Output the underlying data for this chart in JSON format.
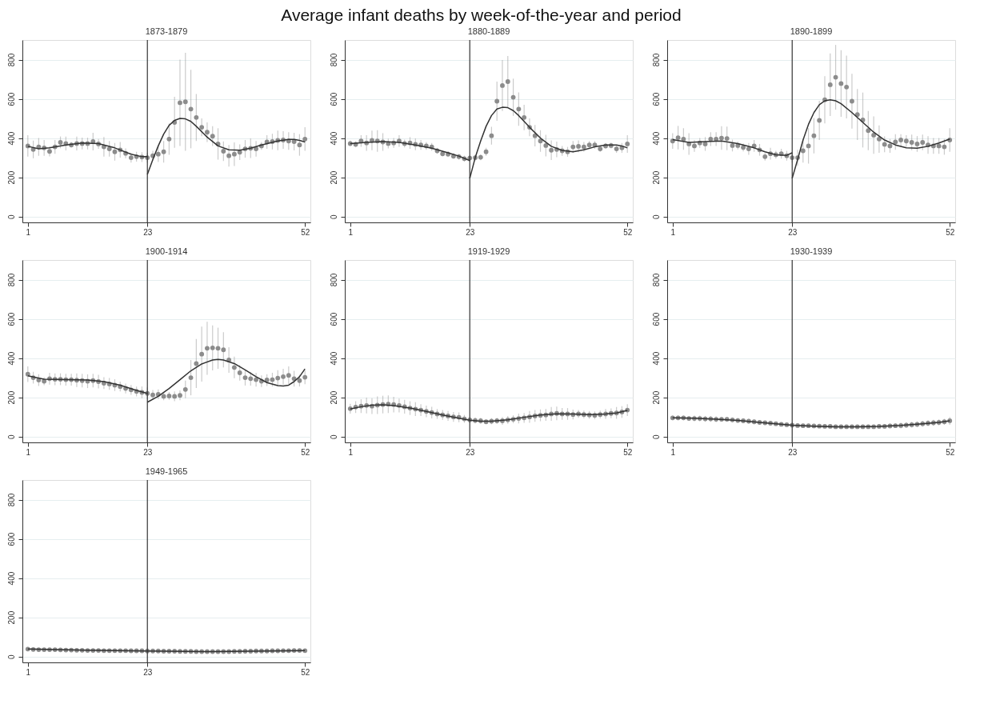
{
  "chart_data": [
    {
      "type": "scatter",
      "title": "1873-1879",
      "annotations": [
        "Average infant deaths by week-of-the-year and period"
      ],
      "marker": "circle",
      "grid": "y",
      "xlim": [
        0,
        53
      ],
      "xticks": [
        1,
        23,
        52
      ],
      "ylim": [
        -30,
        900
      ],
      "yticks": [
        0,
        200,
        400,
        600,
        800
      ],
      "x": [
        1,
        2,
        3,
        4,
        5,
        6,
        7,
        8,
        9,
        10,
        11,
        12,
        13,
        14,
        15,
        16,
        17,
        18,
        19,
        20,
        21,
        22,
        23,
        24,
        25,
        26,
        27,
        28,
        29,
        30,
        31,
        32,
        33,
        34,
        35,
        36,
        37,
        38,
        39,
        40,
        41,
        42,
        43,
        44,
        45,
        46,
        47,
        48,
        49,
        50,
        51,
        52
      ],
      "ref_lines": [
        {
          "axis": "x",
          "value": 23,
          "color": "#333333"
        }
      ],
      "series": [
        {
          "color": "#8c8c8c",
          "values": [
            360,
            342,
            355,
            350,
            332,
            355,
            378,
            372,
            365,
            372,
            372,
            372,
            382,
            370,
            355,
            345,
            330,
            340,
            322,
            300,
            305,
            303,
            300,
            310,
            318,
            330,
            395,
            480,
            580,
            585,
            548,
            505,
            455,
            430,
            410,
            370,
            333,
            310,
            318,
            328,
            345,
            348,
            345,
            360,
            380,
            382,
            388,
            390,
            385,
            382,
            365,
            395
          ],
          "errors": [
            55,
            45,
            45,
            40,
            25,
            35,
            30,
            35,
            15,
            35,
            30,
            30,
            45,
            25,
            50,
            40,
            45,
            40,
            25,
            25,
            25,
            25,
            25,
            25,
            40,
            55,
            80,
            130,
            220,
            250,
            200,
            120,
            45,
            50,
            50,
            80,
            50,
            55,
            60,
            40,
            45,
            50,
            40,
            20,
            35,
            40,
            50,
            45,
            45,
            45,
            55,
            60
          ]
        },
        {
          "type": "line",
          "marker": "none",
          "color": "#333333",
          "x": [
            1,
            3,
            5,
            8,
            11,
            14,
            17,
            20,
            22,
            23
          ],
          "values": [
            358,
            345,
            350,
            365,
            375,
            372,
            350,
            318,
            305,
            305
          ]
        },
        {
          "type": "line",
          "marker": "none",
          "color": "#333333",
          "x": [
            23,
            24,
            25,
            26,
            27,
            28,
            29,
            30,
            31,
            32,
            34,
            36,
            38,
            40,
            42,
            44,
            47,
            49,
            50,
            51,
            52
          ],
          "values": [
            215,
            290,
            360,
            420,
            465,
            490,
            500,
            498,
            485,
            460,
            405,
            360,
            340,
            338,
            348,
            365,
            385,
            393,
            393,
            388,
            380
          ]
        }
      ]
    },
    {
      "type": "scatter",
      "title": "1880-1889",
      "marker": "circle",
      "grid": "y",
      "xlim": [
        0,
        53
      ],
      "xticks": [
        1,
        23,
        52
      ],
      "ylim": [
        -30,
        900
      ],
      "yticks": [
        0,
        200,
        400,
        600,
        800
      ],
      "x": [
        1,
        2,
        3,
        4,
        5,
        6,
        7,
        8,
        9,
        10,
        11,
        12,
        13,
        14,
        15,
        16,
        17,
        18,
        19,
        20,
        21,
        22,
        23,
        24,
        25,
        26,
        27,
        28,
        29,
        30,
        31,
        32,
        33,
        34,
        35,
        36,
        37,
        38,
        39,
        40,
        41,
        42,
        43,
        44,
        45,
        46,
        47,
        48,
        49,
        50,
        51,
        52
      ],
      "ref_lines": [
        {
          "axis": "x",
          "value": 23,
          "color": "#333333"
        }
      ],
      "series": [
        {
          "color": "#8c8c8c",
          "values": [
            372,
            368,
            385,
            375,
            388,
            385,
            380,
            372,
            375,
            385,
            372,
            375,
            368,
            365,
            360,
            355,
            335,
            320,
            318,
            308,
            305,
            295,
            298,
            300,
            302,
            330,
            412,
            588,
            668,
            688,
            608,
            548,
            505,
            455,
            412,
            385,
            362,
            338,
            342,
            335,
            330,
            355,
            358,
            355,
            365,
            365,
            345,
            360,
            362,
            345,
            350,
            370
          ],
          "errors": [
            15,
            15,
            30,
            40,
            50,
            55,
            45,
            25,
            25,
            30,
            20,
            30,
            30,
            25,
            20,
            20,
            15,
            15,
            15,
            15,
            15,
            15,
            15,
            15,
            15,
            20,
            45,
            100,
            130,
            130,
            95,
            85,
            65,
            45,
            55,
            55,
            55,
            50,
            40,
            25,
            25,
            30,
            30,
            25,
            20,
            20,
            15,
            15,
            15,
            20,
            25,
            45
          ]
        },
        {
          "type": "line",
          "marker": "none",
          "color": "#333333",
          "x": [
            1,
            4,
            7,
            10,
            13,
            16,
            19,
            21,
            23
          ],
          "values": [
            372,
            378,
            382,
            378,
            365,
            348,
            325,
            308,
            285
          ]
        },
        {
          "type": "line",
          "marker": "none",
          "color": "#333333",
          "x": [
            23,
            24,
            25,
            26,
            27,
            28,
            29,
            30,
            31,
            32,
            34,
            36,
            38,
            40,
            42,
            44,
            46,
            48,
            50,
            51,
            52
          ],
          "values": [
            195,
            300,
            385,
            460,
            515,
            548,
            557,
            555,
            540,
            515,
            455,
            400,
            358,
            337,
            330,
            340,
            355,
            365,
            365,
            360,
            350
          ]
        }
      ]
    },
    {
      "type": "scatter",
      "title": "1890-1899",
      "marker": "circle",
      "grid": "y",
      "xlim": [
        0,
        53
      ],
      "xticks": [
        1,
        23,
        52
      ],
      "ylim": [
        -30,
        900
      ],
      "yticks": [
        0,
        200,
        400,
        600,
        800
      ],
      "x": [
        1,
        2,
        3,
        4,
        5,
        6,
        7,
        8,
        9,
        10,
        11,
        12,
        13,
        14,
        15,
        16,
        17,
        18,
        19,
        20,
        21,
        22,
        23,
        24,
        25,
        26,
        27,
        28,
        29,
        30,
        31,
        32,
        33,
        34,
        35,
        36,
        37,
        38,
        39,
        40,
        41,
        42,
        43,
        44,
        45,
        46,
        47,
        48,
        49,
        50,
        51,
        52
      ],
      "ref_lines": [
        {
          "axis": "x",
          "value": 23,
          "color": "#333333"
        }
      ],
      "series": [
        {
          "color": "#8c8c8c",
          "values": [
            385,
            402,
            395,
            370,
            360,
            375,
            370,
            395,
            395,
            400,
            398,
            362,
            362,
            352,
            345,
            360,
            340,
            305,
            320,
            315,
            320,
            310,
            300,
            300,
            335,
            360,
            412,
            490,
            595,
            672,
            710,
            678,
            660,
            588,
            520,
            492,
            438,
            415,
            395,
            368,
            360,
            380,
            390,
            385,
            378,
            370,
            378,
            365,
            360,
            360,
            355,
            390
          ],
          "errors": [
            40,
            60,
            55,
            55,
            30,
            25,
            35,
            35,
            35,
            60,
            60,
            30,
            20,
            20,
            30,
            30,
            30,
            20,
            30,
            20,
            25,
            25,
            25,
            40,
            60,
            90,
            90,
            100,
            120,
            160,
            165,
            170,
            160,
            140,
            130,
            140,
            100,
            95,
            70,
            40,
            35,
            40,
            30,
            30,
            40,
            40,
            40,
            45,
            40,
            40,
            40,
            60
          ]
        },
        {
          "type": "line",
          "marker": "none",
          "color": "#333333",
          "x": [
            1,
            4,
            7,
            10,
            13,
            16,
            18,
            20,
            22,
            23
          ],
          "values": [
            392,
            378,
            382,
            385,
            372,
            350,
            330,
            315,
            312,
            325
          ]
        },
        {
          "type": "line",
          "marker": "none",
          "color": "#333333",
          "x": [
            23,
            24,
            25,
            26,
            27,
            28,
            29,
            30,
            31,
            32,
            34,
            36,
            38,
            40,
            42,
            44,
            46,
            48,
            50,
            52
          ],
          "values": [
            195,
            290,
            390,
            470,
            530,
            570,
            590,
            595,
            590,
            575,
            530,
            480,
            430,
            390,
            365,
            350,
            348,
            358,
            375,
            395
          ]
        }
      ]
    },
    {
      "type": "scatter",
      "title": "1900-1914",
      "marker": "circle",
      "grid": "y",
      "xlim": [
        0,
        53
      ],
      "xticks": [
        1,
        23,
        52
      ],
      "ylim": [
        -30,
        900
      ],
      "yticks": [
        0,
        200,
        400,
        600,
        800
      ],
      "x": [
        1,
        2,
        3,
        4,
        5,
        6,
        7,
        8,
        9,
        10,
        11,
        12,
        13,
        14,
        15,
        16,
        17,
        18,
        19,
        20,
        21,
        22,
        23,
        24,
        25,
        26,
        27,
        28,
        29,
        30,
        31,
        32,
        33,
        34,
        35,
        36,
        37,
        38,
        39,
        40,
        41,
        42,
        43,
        44,
        45,
        46,
        47,
        48,
        49,
        50,
        51,
        52
      ],
      "ref_lines": [
        {
          "axis": "x",
          "value": 23,
          "color": "#333333"
        }
      ],
      "series": [
        {
          "color": "#8c8c8c",
          "values": [
            318,
            300,
            288,
            282,
            295,
            292,
            292,
            290,
            290,
            287,
            285,
            282,
            285,
            280,
            272,
            268,
            262,
            255,
            245,
            238,
            230,
            225,
            220,
            212,
            215,
            205,
            207,
            205,
            210,
            240,
            300,
            372,
            420,
            450,
            452,
            450,
            442,
            390,
            352,
            325,
            300,
            295,
            290,
            282,
            288,
            290,
            298,
            305,
            312,
            295,
            285,
            302
          ],
          "errors": [
            40,
            30,
            30,
            20,
            30,
            30,
            30,
            30,
            30,
            35,
            35,
            35,
            35,
            35,
            30,
            30,
            30,
            25,
            25,
            25,
            25,
            30,
            30,
            25,
            25,
            20,
            20,
            25,
            25,
            45,
            90,
            125,
            140,
            135,
            115,
            105,
            90,
            65,
            55,
            40,
            40,
            35,
            35,
            30,
            30,
            35,
            40,
            40,
            45,
            40,
            30,
            35
          ]
        },
        {
          "type": "line",
          "marker": "none",
          "color": "#333333",
          "x": [
            1,
            4,
            8,
            12,
            15,
            18,
            21,
            23
          ],
          "values": [
            310,
            292,
            290,
            288,
            280,
            262,
            235,
            220
          ]
        },
        {
          "type": "line",
          "marker": "none",
          "color": "#333333",
          "x": [
            23,
            25,
            27,
            29,
            31,
            33,
            35,
            36,
            37,
            39,
            41,
            43,
            45,
            47,
            48,
            49,
            50,
            51,
            52
          ],
          "values": [
            175,
            205,
            245,
            290,
            335,
            370,
            390,
            393,
            390,
            372,
            340,
            305,
            275,
            260,
            258,
            262,
            280,
            305,
            345
          ]
        }
      ]
    },
    {
      "type": "scatter",
      "title": "1919-1929",
      "marker": "circle",
      "grid": "y",
      "xlim": [
        0,
        53
      ],
      "xticks": [
        1,
        23,
        52
      ],
      "ylim": [
        -30,
        900
      ],
      "yticks": [
        0,
        200,
        400,
        600,
        800
      ],
      "x": [
        1,
        2,
        3,
        4,
        5,
        6,
        7,
        8,
        9,
        10,
        11,
        12,
        13,
        14,
        15,
        16,
        17,
        18,
        19,
        20,
        21,
        22,
        23,
        24,
        25,
        26,
        27,
        28,
        29,
        30,
        31,
        32,
        33,
        34,
        35,
        36,
        37,
        38,
        39,
        40,
        41,
        42,
        43,
        44,
        45,
        46,
        47,
        48,
        49,
        50,
        51,
        52
      ],
      "ref_lines": [
        {
          "axis": "x",
          "value": 23,
          "color": "#333333"
        }
      ],
      "series": [
        {
          "color": "#8c8c8c",
          "values": [
            142,
            150,
            155,
            158,
            155,
            160,
            163,
            165,
            163,
            158,
            152,
            145,
            140,
            135,
            128,
            122,
            115,
            110,
            105,
            100,
            98,
            90,
            85,
            82,
            80,
            75,
            78,
            80,
            80,
            85,
            88,
            92,
            95,
            100,
            105,
            108,
            110,
            115,
            118,
            115,
            115,
            112,
            115,
            112,
            110,
            108,
            112,
            115,
            118,
            120,
            125,
            135
          ],
          "errors": [
            25,
            30,
            35,
            40,
            40,
            45,
            45,
            45,
            40,
            35,
            35,
            35,
            35,
            30,
            30,
            30,
            25,
            25,
            25,
            25,
            25,
            20,
            15,
            15,
            15,
            10,
            15,
            15,
            20,
            20,
            20,
            25,
            25,
            30,
            30,
            30,
            30,
            35,
            35,
            30,
            30,
            25,
            20,
            20,
            20,
            20,
            20,
            25,
            25,
            30,
            30,
            30
          ]
        },
        {
          "type": "line",
          "marker": "none",
          "color": "#333333",
          "x": [
            1,
            3,
            5,
            7,
            9,
            12,
            15,
            18,
            21,
            23,
            25,
            27,
            30,
            33,
            36,
            39,
            42,
            45,
            48,
            50,
            52
          ],
          "values": [
            140,
            152,
            160,
            162,
            158,
            145,
            128,
            110,
            93,
            83,
            78,
            78,
            85,
            98,
            110,
            116,
            115,
            112,
            115,
            120,
            133
          ]
        }
      ]
    },
    {
      "type": "scatter",
      "title": "1930-1939",
      "marker": "circle",
      "grid": "y",
      "xlim": [
        0,
        53
      ],
      "xticks": [
        1,
        23,
        52
      ],
      "ylim": [
        -30,
        900
      ],
      "yticks": [
        0,
        200,
        400,
        600,
        800
      ],
      "x": [
        1,
        2,
        3,
        4,
        5,
        6,
        7,
        8,
        9,
        10,
        11,
        12,
        13,
        14,
        15,
        16,
        17,
        18,
        19,
        20,
        21,
        22,
        23,
        24,
        25,
        26,
        27,
        28,
        29,
        30,
        31,
        32,
        33,
        34,
        35,
        36,
        37,
        38,
        39,
        40,
        41,
        42,
        43,
        44,
        45,
        46,
        47,
        48,
        49,
        50,
        51,
        52
      ],
      "ref_lines": [
        {
          "axis": "x",
          "value": 23,
          "color": "#333333"
        }
      ],
      "series": [
        {
          "color": "#8c8c8c",
          "values": [
            95,
            95,
            95,
            92,
            92,
            92,
            90,
            90,
            88,
            88,
            88,
            85,
            82,
            80,
            78,
            75,
            72,
            70,
            68,
            65,
            62,
            60,
            58,
            56,
            55,
            55,
            54,
            53,
            52,
            52,
            50,
            50,
            50,
            50,
            50,
            50,
            50,
            50,
            52,
            52,
            54,
            55,
            56,
            58,
            60,
            62,
            65,
            68,
            70,
            72,
            75,
            80
          ],
          "errors": [
            12,
            12,
            12,
            12,
            15,
            15,
            15,
            15,
            15,
            12,
            12,
            12,
            12,
            12,
            12,
            12,
            12,
            10,
            10,
            10,
            10,
            10,
            10,
            10,
            10,
            10,
            10,
            10,
            10,
            10,
            10,
            10,
            10,
            10,
            10,
            10,
            10,
            10,
            12,
            12,
            12,
            12,
            15,
            15,
            15,
            15,
            15,
            15,
            15,
            15,
            15,
            20
          ]
        },
        {
          "type": "line",
          "marker": "none",
          "color": "#333333",
          "x": [
            1,
            5,
            9,
            13,
            17,
            20,
            23,
            27,
            31,
            35,
            39,
            43,
            47,
            50,
            52
          ],
          "values": [
            95,
            93,
            88,
            82,
            72,
            65,
            58,
            53,
            50,
            50,
            52,
            57,
            65,
            72,
            80
          ]
        }
      ]
    },
    {
      "type": "scatter",
      "title": "1949-1965",
      "marker": "circle",
      "grid": "y",
      "xlim": [
        0,
        53
      ],
      "xticks": [
        1,
        23,
        52
      ],
      "ylim": [
        -30,
        900
      ],
      "yticks": [
        0,
        200,
        400,
        600,
        800
      ],
      "x": [
        1,
        2,
        3,
        4,
        5,
        6,
        7,
        8,
        9,
        10,
        11,
        12,
        13,
        14,
        15,
        16,
        17,
        18,
        19,
        20,
        21,
        22,
        23,
        24,
        25,
        26,
        27,
        28,
        29,
        30,
        31,
        32,
        33,
        34,
        35,
        36,
        37,
        38,
        39,
        40,
        41,
        42,
        43,
        44,
        45,
        46,
        47,
        48,
        49,
        50,
        51,
        52
      ],
      "ref_lines": [
        {
          "axis": "x",
          "value": 23,
          "color": "#333333"
        }
      ],
      "series": [
        {
          "color": "#8c8c8c",
          "values": [
            38,
            36,
            35,
            35,
            35,
            35,
            34,
            33,
            33,
            32,
            32,
            31,
            31,
            31,
            30,
            30,
            30,
            30,
            30,
            29,
            29,
            29,
            28,
            28,
            28,
            27,
            27,
            27,
            26,
            26,
            26,
            25,
            25,
            25,
            25,
            25,
            25,
            25,
            26,
            26,
            27,
            27,
            28,
            28,
            28,
            29,
            29,
            30,
            30,
            31,
            31,
            30
          ],
          "errors": [
            5,
            5,
            5,
            5,
            5,
            5,
            5,
            5,
            5,
            5,
            5,
            5,
            5,
            5,
            5,
            5,
            5,
            5,
            5,
            5,
            5,
            5,
            5,
            5,
            5,
            5,
            5,
            5,
            5,
            5,
            5,
            5,
            5,
            5,
            5,
            5,
            5,
            5,
            5,
            5,
            5,
            5,
            5,
            5,
            5,
            5,
            5,
            5,
            5,
            5,
            5,
            5
          ]
        },
        {
          "type": "line",
          "marker": "none",
          "color": "#333333",
          "x": [
            1,
            12,
            23,
            35,
            45,
            52
          ],
          "values": [
            38,
            32,
            28,
            25,
            28,
            30
          ]
        }
      ]
    }
  ]
}
